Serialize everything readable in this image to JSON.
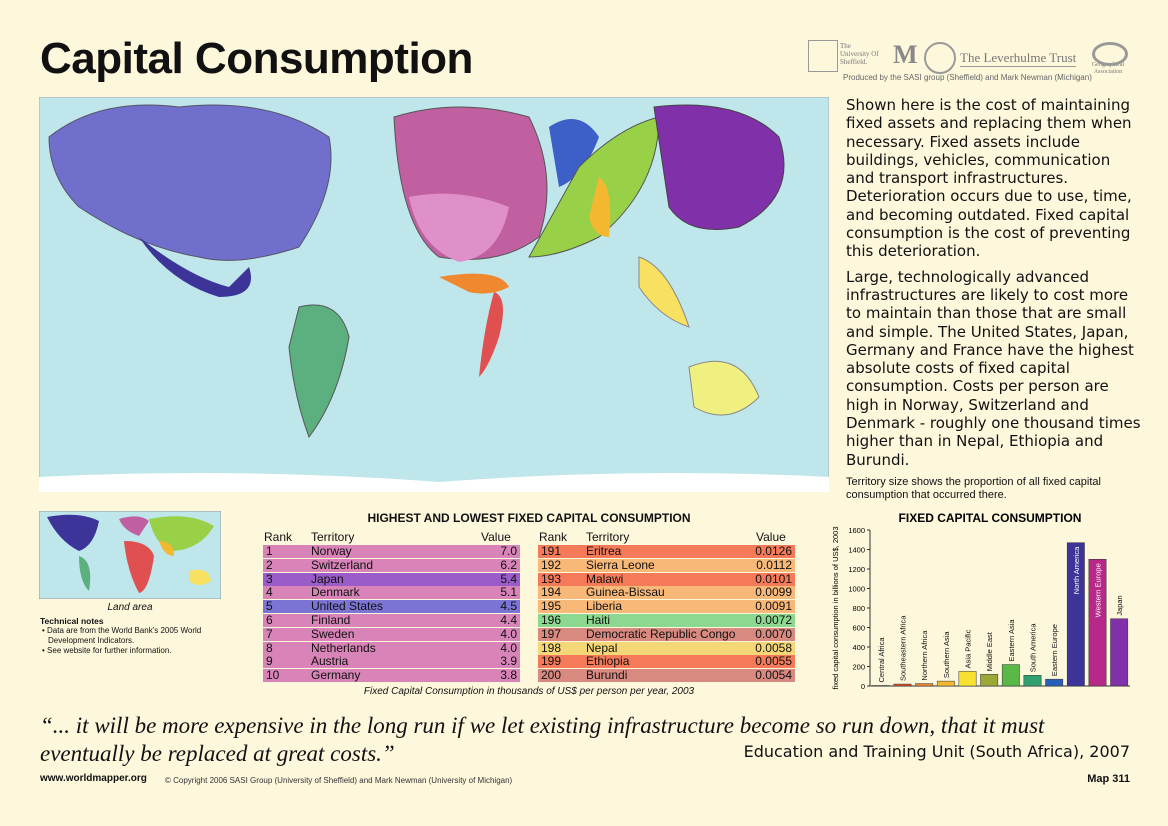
{
  "header": {
    "title": "Capital Consumption",
    "logos": [
      "The University Of Sheffield.",
      "The Leverhulme Trust",
      "Geographical Association"
    ],
    "credit": "Produced by the SASI group (Sheffield) and Mark Newman (Michigan)"
  },
  "description": {
    "paragraphs": [
      "Shown here is the cost of maintaining fixed assets and replacing them when necessary. Fixed assets include buildings, vehicles, communication and transport infrastructures. Deterioration occurs due to use, time, and becoming outdated.  Fixed capital consumption is the cost of preventing this deterioration.",
      "Large, technologically advanced infrastructures are likely to cost more to maintain than those that are small and simple. The United States, Japan, Germany and France have the highest absolute costs of fixed capital consumption. Costs per person are high in Norway, Switzerland and Denmark - roughly one thousand times higher than in Nepal, Ethiopia and Burundi."
    ],
    "note": "Territory size shows the proportion of all fixed capital consumption that occurred there."
  },
  "inset": {
    "label": "Land area",
    "technical_notes": {
      "title": "Technical notes",
      "items": [
        "Data are from the World Bank's 2005 World Development Indicators.",
        "See website for further information."
      ]
    }
  },
  "table": {
    "title": "HIGHEST AND LOWEST FIXED CAPITAL CONSUMPTION",
    "columns": [
      "Rank",
      "Territory",
      "Value"
    ],
    "highest": [
      [
        "1",
        "Norway",
        "7.0",
        "#d884b8"
      ],
      [
        "2",
        "Switzerland",
        "6.2",
        "#d884b8"
      ],
      [
        "3",
        "Japan",
        "5.4",
        "#9a5cc8"
      ],
      [
        "4",
        "Denmark",
        "5.1",
        "#d884b8"
      ],
      [
        "5",
        "United States",
        "4.5",
        "#7b74d4"
      ],
      [
        "6",
        "Finland",
        "4.4",
        "#d884b8"
      ],
      [
        "7",
        "Sweden",
        "4.0",
        "#d884b8"
      ],
      [
        "8",
        "Netherlands",
        "4.0",
        "#d884b8"
      ],
      [
        "9",
        "Austria",
        "3.9",
        "#d884b8"
      ],
      [
        "10",
        "Germany",
        "3.8",
        "#d884b8"
      ]
    ],
    "lowest": [
      [
        "191",
        "Eritrea",
        "0.0126",
        "#f47a5a"
      ],
      [
        "192",
        "Sierra Leone",
        "0.0112",
        "#f8b878"
      ],
      [
        "193",
        "Malawi",
        "0.0101",
        "#f47a5a"
      ],
      [
        "194",
        "Guinea-Bissau",
        "0.0099",
        "#f8b878"
      ],
      [
        "195",
        "Liberia",
        "0.0091",
        "#f8b878"
      ],
      [
        "196",
        "Haiti",
        "0.0072",
        "#8cd890"
      ],
      [
        "197",
        "Democratic Republic Congo",
        "0.0070",
        "#d88a80"
      ],
      [
        "198",
        "Nepal",
        "0.0058",
        "#f4d878"
      ],
      [
        "199",
        "Ethiopia",
        "0.0055",
        "#f47a5a"
      ],
      [
        "200",
        "Burundi",
        "0.0054",
        "#d88a80"
      ]
    ],
    "caption": "Fixed Capital Consumption in thousands of US$ per person per year, 2003"
  },
  "chart_data": {
    "type": "bar",
    "title": "FIXED CAPITAL CONSUMPTION",
    "y_label": "fixed capital consumption in billions of US$, 2003",
    "categories": [
      "Central Africa",
      "Southeastern Africa",
      "Northern Africa",
      "Southern Asia",
      "Asia Pacific",
      "Middle East",
      "Eastern Asia",
      "South America",
      "Eastern Europe",
      "North America",
      "Western Europe",
      "Japan"
    ],
    "values": [
      5,
      20,
      25,
      50,
      150,
      120,
      220,
      110,
      70,
      1470,
      1300,
      690
    ],
    "colors": [
      "#c0282c",
      "#e0502a",
      "#f08830",
      "#f4b830",
      "#f8e030",
      "#9aa838",
      "#58b848",
      "#30a070",
      "#2860b8",
      "#3c3498",
      "#b82888",
      "#8030a8"
    ],
    "ylim": [
      0,
      1600
    ],
    "yticks": [
      0,
      200,
      400,
      600,
      800,
      1000,
      1200,
      1400,
      1600
    ]
  },
  "quote": {
    "text": "“... it will be more expensive in the long run if we let existing infrastructure become so run down, that it must eventually be replaced at great costs.”",
    "source": "Education and Training Unit (South Africa), 2007"
  },
  "footer": {
    "site": "www.worldmapper.org",
    "copyright": "© Copyright 2006 SASI Group (University of Sheffield) and Mark Newman (University of Michigan)",
    "map": "Map 311"
  }
}
